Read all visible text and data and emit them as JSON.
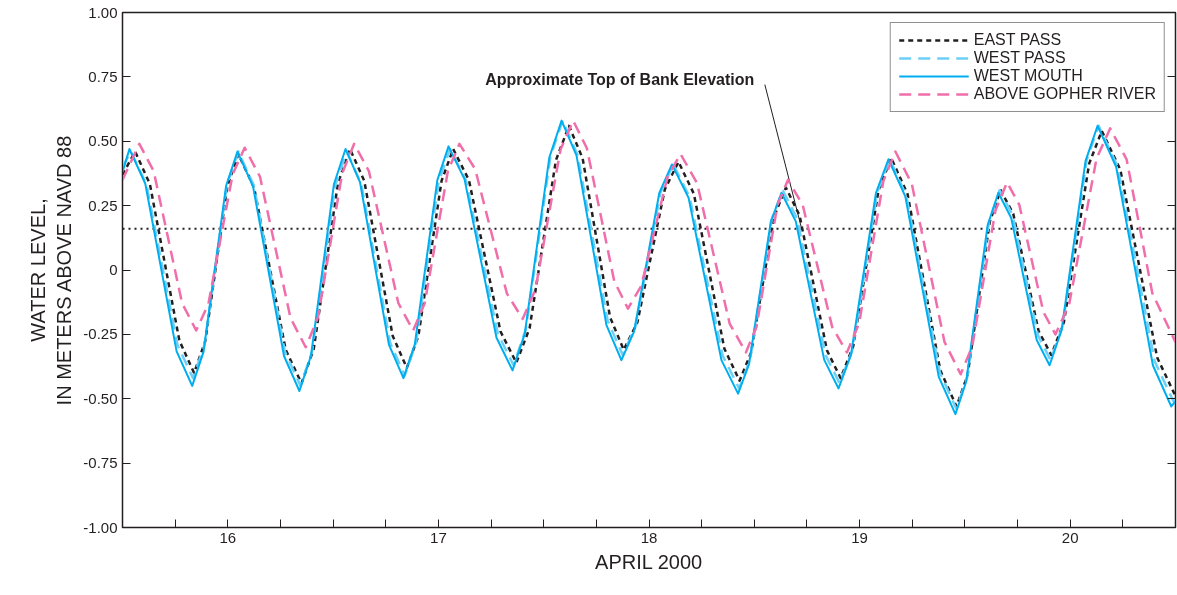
{
  "chart_data": {
    "type": "line",
    "xlabel": "APRIL 2000",
    "ylabel": "WATER LEVEL,\nIN METERS ABOVE NAVD 88",
    "xlim": [
      15.5,
      20.5
    ],
    "xticks": [
      {
        "value": 15.75,
        "label": null
      },
      16,
      {
        "value": 16.25,
        "label": null
      },
      {
        "value": 16.5,
        "label": null
      },
      {
        "value": 16.75,
        "label": null
      },
      17,
      {
        "value": 17.25,
        "label": null
      },
      {
        "value": 17.5,
        "label": null
      },
      {
        "value": 17.75,
        "label": null
      },
      18,
      {
        "value": 18.25,
        "label": null
      },
      {
        "value": 18.5,
        "label": null
      },
      {
        "value": 18.75,
        "label": null
      },
      19,
      {
        "value": 19.25,
        "label": null
      },
      {
        "value": 19.5,
        "label": null
      },
      {
        "value": 19.75,
        "label": null
      },
      20,
      {
        "value": 20.25,
        "label": null
      }
    ],
    "ylim": [
      -1.0,
      1.0
    ],
    "yticks": [
      {
        "value": -1.0,
        "label": "-1.00"
      },
      {
        "value": -0.75,
        "label": "-0.75"
      },
      {
        "value": -0.5,
        "label": "-0.50"
      },
      {
        "value": -0.25,
        "label": "-0.25"
      },
      0,
      {
        "value": 0.25,
        "label": "0.25"
      },
      {
        "value": 0.5,
        "label": "0.50"
      },
      {
        "value": 0.75,
        "label": "0.75"
      },
      {
        "value": 1.0,
        "label": "1.00"
      }
    ],
    "grid": false,
    "legend": "top right",
    "ref_lines": [
      {
        "axis": "y",
        "value": 0.16,
        "label": "Approximate Top of Bank Elevation",
        "color": "#231f20",
        "line_style": "dotted"
      }
    ],
    "series": [
      {
        "name": "EAST PASS",
        "color": "#231f20",
        "line_style": "dashed",
        "x": [
          15.5,
          15.56,
          15.63,
          15.77,
          15.84,
          15.893,
          15.998,
          16.05,
          16.125,
          16.275,
          16.35,
          16.408,
          16.523,
          16.58,
          16.648,
          16.783,
          16.85,
          16.905,
          17.015,
          17.07,
          17.145,
          17.295,
          17.37,
          17.433,
          17.558,
          17.62,
          17.685,
          17.815,
          17.88,
          17.945,
          18.075,
          18.14,
          18.213,
          18.358,
          18.43,
          18.485,
          18.595,
          18.65,
          18.715,
          18.845,
          18.91,
          18.97,
          19.09,
          19.15,
          19.228,
          19.383,
          19.46,
          19.513,
          19.618,
          19.67,
          19.73,
          19.85,
          19.91,
          19.97,
          20.09,
          20.15,
          20.238,
          20.413,
          20.5
        ],
        "values": [
          0.37,
          0.46,
          0.334,
          -0.274,
          -0.4,
          -0.276,
          0.326,
          0.45,
          0.32,
          -0.31,
          -0.44,
          -0.307,
          0.337,
          0.47,
          0.346,
          -0.256,
          -0.38,
          -0.256,
          0.346,
          0.47,
          0.349,
          -0.239,
          -0.36,
          -0.226,
          0.426,
          0.56,
          0.433,
          -0.183,
          -0.31,
          -0.203,
          0.313,
          0.42,
          0.296,
          -0.306,
          -0.43,
          -0.32,
          0.21,
          0.32,
          0.212,
          -0.312,
          -0.42,
          -0.295,
          0.31,
          0.435,
          0.294,
          -0.389,
          -0.53,
          -0.407,
          0.187,
          0.31,
          0.217,
          -0.237,
          -0.33,
          -0.203,
          0.413,
          0.54,
          0.39,
          -0.34,
          -0.49
        ]
      },
      {
        "name": "WEST PASS",
        "color": "#6dcff6",
        "line_style": "dashed",
        "x": [
          15.5,
          15.54,
          15.614,
          15.761,
          15.835,
          15.889,
          15.996,
          16.05,
          16.124,
          16.271,
          16.345,
          16.4,
          16.51,
          16.565,
          16.634,
          16.771,
          16.84,
          16.894,
          17.001,
          17.055,
          17.131,
          17.282,
          17.357,
          17.415,
          17.532,
          17.59,
          17.661,
          17.804,
          17.875,
          17.935,
          18.055,
          18.115,
          18.193,
          18.35,
          18.428,
          18.48,
          18.583,
          18.635,
          18.703,
          18.838,
          18.905,
          18.965,
          19.084,
          19.143,
          19.222,
          19.381,
          19.46,
          19.511,
          19.614,
          19.665,
          19.726,
          19.847,
          19.907,
          19.964,
          20.078,
          20.135,
          20.224,
          20.401,
          20.49,
          20.5
        ],
        "values": [
          0.4,
          0.46,
          0.331,
          -0.291,
          -0.42,
          -0.292,
          0.332,
          0.46,
          0.327,
          -0.317,
          -0.45,
          -0.317,
          0.327,
          0.46,
          0.333,
          -0.283,
          -0.41,
          -0.282,
          0.342,
          0.47,
          0.347,
          -0.247,
          -0.37,
          -0.231,
          0.441,
          0.58,
          0.447,
          -0.197,
          -0.33,
          -0.222,
          0.302,
          0.41,
          0.283,
          -0.333,
          -0.46,
          -0.348,
          0.198,
          0.31,
          0.2,
          -0.33,
          -0.44,
          -0.313,
          0.303,
          0.43,
          0.288,
          -0.398,
          -0.54,
          -0.416,
          0.186,
          0.31,
          0.214,
          -0.254,
          -0.35,
          -0.217,
          0.427,
          0.56,
          0.404,
          -0.354,
          -0.51,
          -0.5
        ]
      },
      {
        "name": "WEST MOUTH",
        "color": "#00aeef",
        "line_style": "solid",
        "x": [
          15.5,
          15.533,
          15.608,
          15.757,
          15.831,
          15.885,
          15.992,
          16.046,
          16.12,
          16.267,
          16.34,
          16.395,
          16.504,
          16.559,
          16.628,
          16.765,
          16.834,
          16.888,
          16.995,
          17.048,
          17.124,
          17.276,
          17.352,
          17.41,
          17.527,
          17.585,
          17.656,
          17.798,
          17.869,
          17.929,
          18.049,
          18.109,
          18.188,
          18.344,
          18.423,
          18.475,
          18.578,
          18.629,
          18.697,
          18.832,
          18.9,
          18.959,
          19.078,
          19.137,
          19.217,
          19.376,
          19.455,
          19.506,
          19.608,
          19.659,
          19.72,
          19.841,
          19.902,
          19.959,
          20.073,
          20.13,
          20.218,
          20.393,
          20.48,
          20.5
        ],
        "values": [
          0.38,
          0.47,
          0.336,
          -0.316,
          -0.45,
          -0.317,
          0.327,
          0.46,
          0.324,
          -0.334,
          -0.47,
          -0.333,
          0.333,
          0.47,
          0.34,
          -0.29,
          -0.42,
          -0.289,
          0.349,
          0.48,
          0.353,
          -0.263,
          -0.39,
          -0.248,
          0.438,
          0.58,
          0.444,
          -0.214,
          -0.35,
          -0.239,
          0.299,
          0.41,
          0.28,
          -0.35,
          -0.48,
          -0.366,
          0.186,
          0.3,
          0.189,
          -0.349,
          -0.46,
          -0.33,
          0.3,
          0.43,
          0.286,
          -0.415,
          -0.56,
          -0.434,
          0.174,
          0.3,
          0.202,
          -0.272,
          -0.37,
          -0.234,
          0.424,
          0.56,
          0.401,
          -0.371,
          -0.53,
          -0.51
        ]
      },
      {
        "name": "ABOVE GOPHER RIVER",
        "color": "#f06eaa",
        "line_style": "dashed",
        "x": [
          15.5,
          15.58,
          15.648,
          15.783,
          15.85,
          15.908,
          16.023,
          16.08,
          16.153,
          16.298,
          16.37,
          16.428,
          16.543,
          16.6,
          16.67,
          16.81,
          16.88,
          16.935,
          17.045,
          17.1,
          17.175,
          17.325,
          17.4,
          17.46,
          17.58,
          17.64,
          17.705,
          17.835,
          17.9,
          17.963,
          18.088,
          18.15,
          18.228,
          18.383,
          18.46,
          18.51,
          18.61,
          18.66,
          18.73,
          18.87,
          18.94,
          18.998,
          19.113,
          19.17,
          19.248,
          19.403,
          19.48,
          19.535,
          19.645,
          19.7,
          19.758,
          19.873,
          19.93,
          19.995,
          20.125,
          20.19,
          20.268,
          20.39,
          20.5
        ],
        "values": [
          0.35,
          0.49,
          0.384,
          -0.129,
          -0.235,
          -0.131,
          0.371,
          0.475,
          0.362,
          -0.187,
          -0.3,
          -0.185,
          0.375,
          0.49,
          0.384,
          -0.129,
          -0.235,
          -0.129,
          0.384,
          0.49,
          0.391,
          -0.091,
          -0.19,
          -0.078,
          0.468,
          0.58,
          0.473,
          -0.043,
          -0.15,
          -0.062,
          0.362,
          0.45,
          0.338,
          -0.208,
          -0.32,
          -0.222,
          0.252,
          0.35,
          0.252,
          -0.222,
          -0.32,
          -0.206,
          0.346,
          0.46,
          0.334,
          -0.279,
          -0.405,
          -0.296,
          0.231,
          0.34,
          0.254,
          -0.164,
          -0.25,
          -0.133,
          0.433,
          0.55,
          0.429,
          -0.09,
          -0.28
        ]
      }
    ]
  }
}
